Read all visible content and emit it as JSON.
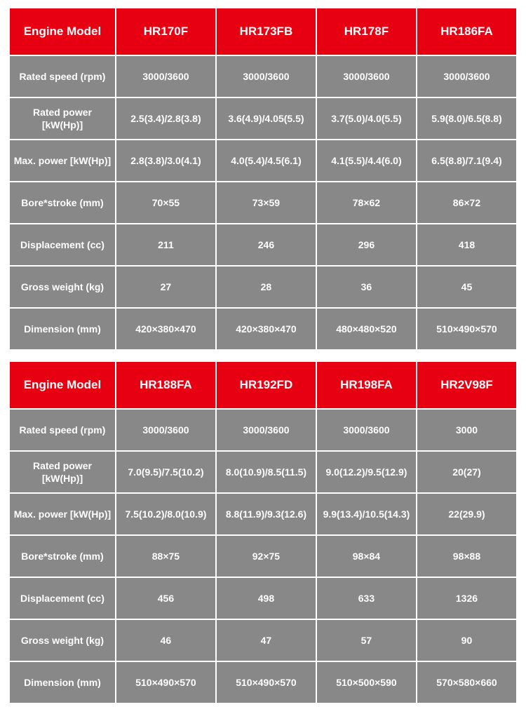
{
  "colors": {
    "header_bg": "#e60012",
    "cell_bg": "#888888",
    "text": "#ffffff",
    "page_bg": "#ffffff"
  },
  "tables": [
    {
      "header": [
        "Engine Model",
        "HR170F",
        "HR173FB",
        "HR178F",
        "HR186FA"
      ],
      "rows": [
        {
          "label": "Rated speed (rpm)",
          "values": [
            "3000/3600",
            "3000/3600",
            "3000/3600",
            "3000/3600"
          ]
        },
        {
          "label": "Rated power [kW(Hp)]",
          "values": [
            "2.5(3.4)/2.8(3.8)",
            "3.6(4.9)/4.05(5.5)",
            "3.7(5.0)/4.0(5.5)",
            "5.9(8.0)/6.5(8.8)"
          ]
        },
        {
          "label": "Max. power [kW(Hp)]",
          "values": [
            "2.8(3.8)/3.0(4.1)",
            "4.0(5.4)/4.5(6.1)",
            "4.1(5.5)/4.4(6.0)",
            "6.5(8.8)/7.1(9.4)"
          ]
        },
        {
          "label": "Bore*stroke (mm)",
          "values": [
            "70×55",
            "73×59",
            "78×62",
            "86×72"
          ]
        },
        {
          "label": "Displacement (cc)",
          "values": [
            "211",
            "246",
            "296",
            "418"
          ]
        },
        {
          "label": "Gross weight (kg)",
          "values": [
            "27",
            "28",
            "36",
            "45"
          ]
        },
        {
          "label": "Dimension (mm)",
          "values": [
            "420×380×470",
            "420×380×470",
            "480×480×520",
            "510×490×570"
          ]
        }
      ]
    },
    {
      "header": [
        "Engine Model",
        "HR188FA",
        "HR192FD",
        "HR198FA",
        "HR2V98F"
      ],
      "rows": [
        {
          "label": "Rated speed (rpm)",
          "values": [
            "3000/3600",
            "3000/3600",
            "3000/3600",
            "3000"
          ]
        },
        {
          "label": "Rated power [kW(Hp)]",
          "values": [
            "7.0(9.5)/7.5(10.2)",
            "8.0(10.9)/8.5(11.5)",
            "9.0(12.2)/9.5(12.9)",
            "20(27)"
          ]
        },
        {
          "label": "Max. power [kW(Hp)]",
          "values": [
            "7.5(10.2)/8.0(10.9)",
            "8.8(11.9)/9.3(12.6)",
            "9.9(13.4)/10.5(14.3)",
            "22(29.9)"
          ]
        },
        {
          "label": "Bore*stroke (mm)",
          "values": [
            "88×75",
            "92×75",
            "98×84",
            "98×88"
          ]
        },
        {
          "label": "Displacement (cc)",
          "values": [
            "456",
            "498",
            "633",
            "1326"
          ]
        },
        {
          "label": "Gross weight (kg)",
          "values": [
            "46",
            "47",
            "57",
            "90"
          ]
        },
        {
          "label": "Dimension (mm)",
          "values": [
            "510×490×570",
            "510×490×570",
            "510×500×590",
            "570×580×660"
          ]
        }
      ]
    }
  ]
}
